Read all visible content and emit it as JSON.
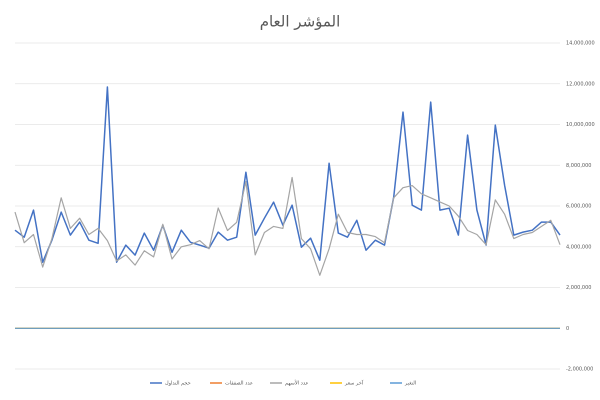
{
  "chart_data": {
    "type": "line",
    "title": "المؤشر العام",
    "categories": [
      null,
      null,
      null,
      null,
      null,
      null,
      null,
      null,
      null,
      null,
      null,
      null,
      null,
      null,
      null,
      null,
      null,
      null,
      null,
      null,
      null,
      null,
      null,
      null,
      null,
      null,
      null,
      null,
      null,
      null,
      null,
      null,
      null,
      null,
      null,
      null,
      null,
      null,
      null,
      null,
      null,
      null,
      null,
      null,
      null,
      null,
      null,
      null,
      null,
      null,
      null,
      null,
      null,
      null,
      null,
      null,
      null,
      null,
      null,
      null
    ],
    "series": [
      {
        "name": "حجم التداول",
        "color": "#4472c4",
        "values": [
          4810000,
          4470000,
          5800000,
          3240000,
          4320000,
          5700000,
          4570000,
          5210000,
          4320000,
          4170000,
          11840000,
          3240000,
          4080000,
          3590000,
          4670000,
          3830000,
          5060000,
          3730000,
          4810000,
          4220000,
          4080000,
          3930000,
          4720000,
          4320000,
          4470000,
          7660000,
          4570000,
          5400000,
          6190000,
          5060000,
          6040000,
          3980000,
          4420000,
          3340000,
          8100000,
          4670000,
          4470000,
          5300000,
          3830000,
          4320000,
          4080000,
          6430000,
          10610000,
          6040000,
          5800000,
          11100000,
          5800000,
          5890000,
          4570000,
          9480000,
          5800000,
          4080000,
          9970000,
          7020000,
          4570000,
          4720000,
          4810000,
          5210000,
          5210000,
          4570000
        ]
      },
      {
        "name": "عدد الصفقات",
        "color": "#ed7d31",
        "values": [
          0,
          0,
          0,
          0,
          0,
          0,
          0,
          0,
          0,
          0,
          0,
          0,
          0,
          0,
          0,
          0,
          0,
          0,
          0,
          0,
          0,
          0,
          0,
          0,
          0,
          0,
          0,
          0,
          0,
          0,
          0,
          0,
          0,
          0,
          0,
          0,
          0,
          0,
          0,
          0,
          0,
          0,
          0,
          0,
          0,
          0,
          0,
          0,
          0,
          0,
          0,
          0,
          0,
          0,
          0,
          0,
          0,
          0,
          0,
          0
        ]
      },
      {
        "name": "عدد الأسهم",
        "color": "#a5a5a5",
        "values": [
          5700000,
          4200000,
          4600000,
          3000000,
          4400000,
          6400000,
          4900000,
          5400000,
          4600000,
          4900000,
          4300000,
          3300000,
          3600000,
          3100000,
          3800000,
          3500000,
          5100000,
          3400000,
          4000000,
          4100000,
          4300000,
          3900000,
          5900000,
          4800000,
          5200000,
          7200000,
          3600000,
          4700000,
          5000000,
          4900000,
          7400000,
          4400000,
          3900000,
          2600000,
          3900000,
          5600000,
          4700000,
          4600000,
          4600000,
          4500000,
          4200000,
          6400000,
          6900000,
          7000000,
          6600000,
          6400000,
          6200000,
          6000000,
          5500000,
          4800000,
          4600000,
          4100000,
          6300000,
          5600000,
          4400000,
          4600000,
          4700000,
          5000000,
          5300000,
          4100000
        ]
      },
      {
        "name": "آخر سعر",
        "color": "#ffc000",
        "values": [
          0,
          0,
          0,
          0,
          0,
          0,
          0,
          0,
          0,
          0,
          0,
          0,
          0,
          0,
          0,
          0,
          0,
          0,
          0,
          0,
          0,
          0,
          0,
          0,
          0,
          0,
          0,
          0,
          0,
          0,
          0,
          0,
          0,
          0,
          0,
          0,
          0,
          0,
          0,
          0,
          0,
          0,
          0,
          0,
          0,
          0,
          0,
          0,
          0,
          0,
          0,
          0,
          0,
          0,
          0,
          0,
          0,
          0,
          0,
          0
        ]
      },
      {
        "name": "التغير",
        "color": "#5b9bd5",
        "values": [
          0,
          0,
          0,
          0,
          0,
          0,
          0,
          0,
          0,
          0,
          0,
          0,
          0,
          0,
          0,
          0,
          0,
          0,
          0,
          0,
          0,
          0,
          0,
          0,
          0,
          0,
          0,
          0,
          0,
          0,
          0,
          0,
          0,
          0,
          0,
          0,
          0,
          0,
          0,
          0,
          0,
          0,
          0,
          0,
          0,
          0,
          0,
          0,
          0,
          0,
          0,
          0,
          0,
          0,
          0,
          0,
          0,
          0,
          0,
          0
        ]
      }
    ],
    "ylim": [
      -2000000,
      14000000
    ],
    "yticks": [
      {
        "value": -2000000,
        "label": "-2,000,000"
      },
      0,
      {
        "value": 2000000,
        "label": "2,000,000"
      },
      {
        "value": 4000000,
        "label": "4,000,000"
      },
      {
        "value": 6000000,
        "label": "6,000,000"
      },
      {
        "value": 8000000,
        "label": "8,000,000"
      },
      {
        "value": 10000000,
        "label": "10,000,000"
      },
      {
        "value": 12000000,
        "label": "12,000,000"
      },
      {
        "value": 14000000,
        "label": "14,000,000"
      }
    ],
    "grid": true
  }
}
